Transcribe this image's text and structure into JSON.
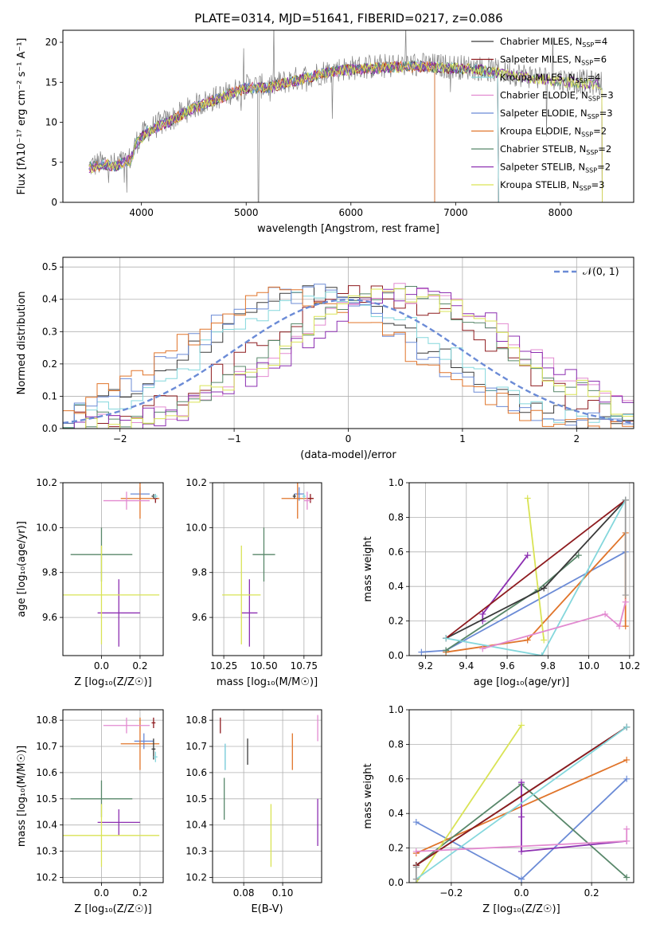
{
  "figure_title": "PLATE=0314, MJD=51641, FIBERID=0217, z=0.086",
  "series_colors": [
    "#6b8bd6",
    "#e0742a",
    "#58876a",
    "#8c2fb1",
    "#d9e355",
    "#3a3a3a",
    "#8e1b1f",
    "#84d7dc",
    "#e28ad0",
    "#999999"
  ],
  "chart_data": [
    {
      "id": "spectrum",
      "type": "line",
      "title": "PLATE=0314, MJD=51641, FIBERID=0217, z=0.086",
      "xlabel": "wavelength [Angstrom, rest frame]",
      "ylabel": "Flux [fλ10⁻¹⁷ erg cm⁻² s⁻¹ A⁻¹]",
      "xlim": [
        3250,
        8700
      ],
      "ylim": [
        0,
        21.5
      ],
      "xticks": [
        4000,
        5000,
        6000,
        7000,
        8000
      ],
      "yticks": [
        0,
        5,
        10,
        15,
        20
      ],
      "grid": false,
      "legend_position": "right",
      "continuum": {
        "x": [
          3500,
          3650,
          3750,
          3900,
          3950,
          4050,
          4300,
          4500,
          4800,
          5000,
          5200,
          5500,
          5800,
          6000,
          6300,
          6600,
          6900,
          7200,
          7500,
          7800,
          8100,
          8400
        ],
        "y": [
          4.5,
          5.0,
          4.7,
          5.5,
          7.5,
          9.0,
          10.5,
          12.0,
          13.5,
          14.5,
          14.5,
          15.5,
          16.5,
          16.8,
          17.0,
          17.2,
          17.0,
          16.8,
          16.2,
          15.6,
          15.2,
          14.8
        ]
      },
      "data_range": [
        3500,
        8400
      ],
      "series": [
        {
          "name": "Chabrier MILES, N_SSP=4",
          "end": 7410
        },
        {
          "name": "Salpeter MILES, N_SSP=6",
          "end": 7410
        },
        {
          "name": "Kroupa MILES, N_SSP=4",
          "end": 7410
        },
        {
          "name": "Chabrier ELODIE, N_SSP=3",
          "end": 6800
        },
        {
          "name": "Salpeter ELODIE, N_SSP=3",
          "end": 6800
        },
        {
          "name": "Kroupa ELODIE, N_SSP=2",
          "end": 6800
        },
        {
          "name": "Chabrier STELIB, N_SSP=2",
          "end": 8400
        },
        {
          "name": "Salpeter STELIB, N_SSP=2",
          "end": 8400
        },
        {
          "name": "Kroupa STELIB, N_SSP=3",
          "end": 8400
        }
      ],
      "legend_labels": [
        {
          "text": "Chabrier MILES, N",
          "sub": "SSP",
          "tail": "=4"
        },
        {
          "text": "Salpeter MILES, N",
          "sub": "SSP",
          "tail": "=6"
        },
        {
          "text": "Kroupa MILES, N",
          "sub": "SSP",
          "tail": "=4"
        },
        {
          "text": "Chabrier ELODIE, N",
          "sub": "SSP",
          "tail": "=3"
        },
        {
          "text": "Salpeter ELODIE, N",
          "sub": "SSP",
          "tail": "=3"
        },
        {
          "text": "Kroupa ELODIE, N",
          "sub": "SSP",
          "tail": "=2"
        },
        {
          "text": "Chabrier STELIB, N",
          "sub": "SSP",
          "tail": "=2"
        },
        {
          "text": "Salpeter STELIB, N",
          "sub": "SSP",
          "tail": "=2"
        },
        {
          "text": "Kroupa STELIB, N",
          "sub": "SSP",
          "tail": "=3"
        }
      ]
    },
    {
      "id": "residuals",
      "type": "histogram",
      "xlabel": "(data-model)/error",
      "ylabel": "Normed distribution",
      "xlim": [
        -2.5,
        2.5
      ],
      "ylim": [
        0,
        0.53
      ],
      "xticks": [
        -2,
        -1,
        0,
        1,
        2
      ],
      "yticks": [
        0.0,
        0.1,
        0.2,
        0.3,
        0.4,
        0.5
      ],
      "grid": true,
      "legend": {
        "label": "𝒩(0, 1)",
        "position": "top-right"
      },
      "bin_width": 0.1,
      "reference_curve": {
        "type": "normal",
        "mean": 0,
        "sd": 1
      },
      "series_peak_shift": [
        -0.3,
        0.2,
        -0.2,
        0.5,
        -0.4,
        -0.5,
        0.4,
        0.55,
        0.45
      ]
    },
    {
      "id": "age_vs_Z",
      "type": "scatter",
      "xlabel": "Z [log₁₀(Z/Z☉)]",
      "ylabel": "age  [log₁₀(age/yr)]",
      "xlim": [
        -0.2,
        0.32
      ],
      "ylim": [
        9.43,
        10.2
      ],
      "xticks": [
        0.0,
        0.2
      ],
      "yticks": [
        9.6,
        9.8,
        10.0,
        10.2
      ],
      "grid": true,
      "points": [
        {
          "series": 0,
          "x": 0.2,
          "y": 10.15,
          "xerr": 0.05,
          "yerr": 0.03
        },
        {
          "series": 1,
          "x": 0.2,
          "y": 10.13,
          "xerr": 0.1,
          "yerr": 0.09
        },
        {
          "series": 2,
          "x": 0.0,
          "y": 9.88,
          "xerr": 0.16,
          "yerr": 0.12
        },
        {
          "series": 3,
          "x": 0.09,
          "y": 9.62,
          "xerr": 0.11,
          "yerr": 0.15
        },
        {
          "series": 4,
          "x": 0.0,
          "y": 9.7,
          "xerr": 0.3,
          "yerr": 0.22
        },
        {
          "series": 5,
          "x": 0.27,
          "y": 10.14,
          "xerr": 0.01,
          "yerr": 0.01
        },
        {
          "series": 6,
          "x": 0.28,
          "y": 10.13,
          "xerr": 0.01,
          "yerr": 0.02
        },
        {
          "series": 7,
          "x": 0.28,
          "y": 10.14,
          "xerr": 0.01,
          "yerr": 0.01
        },
        {
          "series": 8,
          "x": 0.13,
          "y": 10.12,
          "xerr": 0.12,
          "yerr": 0.04
        }
      ]
    },
    {
      "id": "age_vs_mass",
      "type": "scatter",
      "xlabel": "mass [log₁₀(M/M☉)]",
      "ylabel": "",
      "xlim": [
        10.18,
        10.86
      ],
      "ylim": [
        9.43,
        10.2
      ],
      "xticks": [
        10.25,
        10.5,
        10.75
      ],
      "yticks": [
        9.6,
        9.8,
        10.0,
        10.2
      ],
      "grid": true,
      "points": [
        {
          "series": 0,
          "x": 10.72,
          "y": 10.15,
          "xerr": 0.03,
          "yerr": 0.03
        },
        {
          "series": 1,
          "x": 10.71,
          "y": 10.13,
          "xerr": 0.1,
          "yerr": 0.09
        },
        {
          "series": 2,
          "x": 10.5,
          "y": 9.88,
          "xerr": 0.07,
          "yerr": 0.12
        },
        {
          "series": 3,
          "x": 10.41,
          "y": 9.62,
          "xerr": 0.05,
          "yerr": 0.15
        },
        {
          "series": 4,
          "x": 10.36,
          "y": 9.7,
          "xerr": 0.12,
          "yerr": 0.22
        },
        {
          "series": 5,
          "x": 10.69,
          "y": 10.14,
          "xerr": 0.01,
          "yerr": 0.01
        },
        {
          "series": 6,
          "x": 10.79,
          "y": 10.13,
          "xerr": 0.02,
          "yerr": 0.02
        },
        {
          "series": 7,
          "x": 10.75,
          "y": 10.14,
          "xerr": 0.01,
          "yerr": 0.01
        },
        {
          "series": 8,
          "x": 10.77,
          "y": 10.12,
          "xerr": 0.02,
          "yerr": 0.04
        }
      ]
    },
    {
      "id": "weight_vs_age",
      "type": "line",
      "xlabel": "age  [log₁₀(age/yr)]",
      "ylabel": "mass weight",
      "xlim": [
        9.12,
        10.22
      ],
      "ylim": [
        0,
        1.0
      ],
      "xticks": [
        9.2,
        9.4,
        9.6,
        9.8,
        10.0,
        10.2
      ],
      "yticks": [
        0.0,
        0.2,
        0.4,
        0.6,
        0.8,
        1.0
      ],
      "grid": true,
      "series": [
        {
          "series": 0,
          "x": [
            9.18,
            9.3,
            10.18
          ],
          "y": [
            0.02,
            0.03,
            0.6
          ]
        },
        {
          "series": 1,
          "x": [
            9.3,
            9.7,
            10.18,
            10.18
          ],
          "y": [
            0.02,
            0.09,
            0.71,
            0.17
          ]
        },
        {
          "series": 2,
          "x": [
            9.3,
            9.75,
            9.95
          ],
          "y": [
            0.03,
            0.38,
            0.58
          ]
        },
        {
          "series": 3,
          "x": [
            9.48,
            9.48,
            9.7
          ],
          "y": [
            0.2,
            0.24,
            0.58
          ]
        },
        {
          "series": 4,
          "x": [
            9.7,
            9.78
          ],
          "y": [
            0.91,
            0.09
          ]
        },
        {
          "series": 5,
          "x": [
            9.3,
            9.78,
            10.18
          ],
          "y": [
            0.1,
            0.39,
            0.9
          ]
        },
        {
          "series": 6,
          "x": [
            9.3,
            10.18
          ],
          "y": [
            0.1,
            0.9
          ]
        },
        {
          "series": 7,
          "x": [
            9.3,
            9.77,
            10.18
          ],
          "y": [
            0.1,
            0.0,
            0.9
          ]
        },
        {
          "series": 8,
          "x": [
            9.48,
            10.08,
            10.15,
            10.18
          ],
          "y": [
            0.04,
            0.24,
            0.17,
            0.31
          ]
        },
        {
          "series": 9,
          "x": [
            10.18,
            10.18
          ],
          "y": [
            0.35,
            0.9
          ]
        }
      ]
    },
    {
      "id": "mass_vs_Z",
      "type": "scatter",
      "xlabel": "Z [log₁₀(Z/Z☉)]",
      "ylabel": "mass [log₁₀(M/M☉)]",
      "xlim": [
        -0.2,
        0.32
      ],
      "ylim": [
        10.18,
        10.84
      ],
      "xticks": [
        0.0,
        0.2
      ],
      "yticks": [
        10.2,
        10.3,
        10.4,
        10.5,
        10.6,
        10.7,
        10.8
      ],
      "grid": true,
      "points": [
        {
          "series": 0,
          "x": 0.22,
          "y": 10.72,
          "xerr": 0.05,
          "yerr": 0.03
        },
        {
          "series": 1,
          "x": 0.2,
          "y": 10.71,
          "xerr": 0.1,
          "yerr": 0.1
        },
        {
          "series": 2,
          "x": 0.0,
          "y": 10.5,
          "xerr": 0.16,
          "yerr": 0.07
        },
        {
          "series": 3,
          "x": 0.09,
          "y": 10.41,
          "xerr": 0.11,
          "yerr": 0.05
        },
        {
          "series": 4,
          "x": 0.0,
          "y": 10.36,
          "xerr": 0.3,
          "yerr": 0.12
        },
        {
          "series": 5,
          "x": 0.27,
          "y": 10.69,
          "xerr": 0.01,
          "yerr": 0.04
        },
        {
          "series": 6,
          "x": 0.27,
          "y": 10.79,
          "xerr": 0.01,
          "yerr": 0.02
        },
        {
          "series": 7,
          "x": 0.28,
          "y": 10.66,
          "xerr": 0.01,
          "yerr": 0.02
        },
        {
          "series": 8,
          "x": 0.13,
          "y": 10.78,
          "xerr": 0.12,
          "yerr": 0.03
        }
      ]
    },
    {
      "id": "mass_vs_ebv",
      "type": "scatter",
      "xlabel": "E(B-V)",
      "ylabel": "",
      "xlim": [
        0.064,
        0.12
      ],
      "ylim": [
        10.18,
        10.84
      ],
      "xticks": [
        0.08,
        0.1
      ],
      "yticks": [
        10.2,
        10.3,
        10.4,
        10.5,
        10.6,
        10.7,
        10.8
      ],
      "grid": true,
      "points": [
        {
          "series": 0,
          "x": 0.0705,
          "y": 10.66,
          "xerr": 0.0,
          "yerr": 0.05
        },
        {
          "series": 1,
          "x": 0.105,
          "y": 10.68,
          "xerr": 0.0,
          "yerr": 0.07
        },
        {
          "series": 2,
          "x": 0.07,
          "y": 10.5,
          "xerr": 0.0,
          "yerr": 0.08
        },
        {
          "series": 3,
          "x": 0.118,
          "y": 10.41,
          "xerr": 0.0,
          "yerr": 0.09
        },
        {
          "series": 4,
          "x": 0.094,
          "y": 10.36,
          "xerr": 0.0,
          "yerr": 0.12
        },
        {
          "series": 5,
          "x": 0.082,
          "y": 10.68,
          "xerr": 0.0,
          "yerr": 0.05
        },
        {
          "series": 6,
          "x": 0.068,
          "y": 10.78,
          "xerr": 0.0,
          "yerr": 0.03
        },
        {
          "series": 7,
          "x": 0.0705,
          "y": 10.66,
          "xerr": 0.0,
          "yerr": 0.05
        },
        {
          "series": 8,
          "x": 0.118,
          "y": 10.77,
          "xerr": 0.0,
          "yerr": 0.05
        }
      ]
    },
    {
      "id": "weight_vs_Z",
      "type": "line",
      "xlabel": "Z [log₁₀(Z/Z☉)]",
      "ylabel": "mass weight",
      "xlim": [
        -0.32,
        0.32
      ],
      "ylim": [
        0,
        1.0
      ],
      "xticks": [
        -0.2,
        0.0,
        0.2
      ],
      "yticks": [
        0.0,
        0.2,
        0.4,
        0.6,
        0.8,
        1.0
      ],
      "grid": true,
      "series": [
        {
          "series": 0,
          "x": [
            -0.3,
            0.0,
            0.3
          ],
          "y": [
            0.35,
            0.02,
            0.6
          ]
        },
        {
          "series": 1,
          "x": [
            -0.3,
            0.3
          ],
          "y": [
            0.17,
            0.71
          ]
        },
        {
          "series": 2,
          "x": [
            -0.3,
            0.0,
            0.3
          ],
          "y": [
            0.1,
            0.57,
            0.03
          ]
        },
        {
          "series": 3,
          "x": [
            0.0,
            0.0,
            0.0,
            0.3
          ],
          "y": [
            0.58,
            0.38,
            0.18,
            0.24
          ]
        },
        {
          "series": 4,
          "x": [
            -0.3,
            0.0
          ],
          "y": [
            0.0,
            0.91
          ]
        },
        {
          "series": 5,
          "x": [
            -0.3,
            0.3
          ],
          "y": [
            0.1,
            0.9
          ]
        },
        {
          "series": 6,
          "x": [
            -0.3,
            0.3
          ],
          "y": [
            0.1,
            0.9
          ]
        },
        {
          "series": 7,
          "x": [
            -0.3,
            0.3
          ],
          "y": [
            0.02,
            0.9
          ]
        },
        {
          "series": 8,
          "x": [
            -0.3,
            0.3,
            0.3
          ],
          "y": [
            0.18,
            0.24,
            0.31
          ]
        },
        {
          "series": 9,
          "x": [
            -0.3,
            -0.3
          ],
          "y": [
            0.02,
            0.09
          ]
        }
      ]
    }
  ]
}
